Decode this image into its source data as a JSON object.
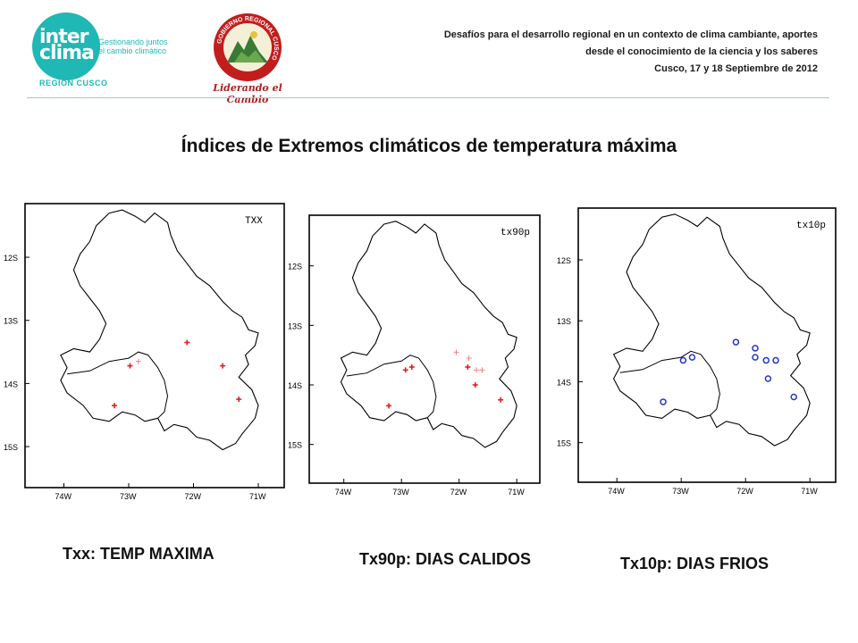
{
  "header": {
    "logo_word_1": "inter",
    "logo_word_2": "clima",
    "logo_tagline_1": "Gestionando juntos",
    "logo_tagline_2": "el cambio climático",
    "region": "REGION CUSCO",
    "gob_slogan": "Liderando el Cambio",
    "gob_ring_text": "GOBIERNO REGIONAL CUSCO",
    "event_line_1": "Desafíos para el desarrollo regional en un contexto de clima cambiante, aportes",
    "event_line_2": "desde el conocimiento de la ciencia y los saberes",
    "event_line_3": "Cusco, 17 y 18 Septiembre de 2012"
  },
  "title": "Índices de Extremos climáticos de temperatura máxima",
  "colors": {
    "accent": "#1fb8b4",
    "plus_marker": "#e02020",
    "circle_marker": "#2038c8",
    "slogan": "#b02020"
  },
  "axis": {
    "lat_ticks": [
      "12S",
      "13S",
      "14S",
      "15S"
    ],
    "lon_ticks": [
      "74W",
      "73W",
      "72W",
      "71W"
    ]
  },
  "panels": [
    {
      "label": "TXX",
      "caption": "Txx: TEMP MAXIMA",
      "marker": "plus",
      "points": [
        {
          "lon": -72.1,
          "lat": -13.35,
          "strong": true
        },
        {
          "lon": -72.98,
          "lat": -13.72,
          "strong": true
        },
        {
          "lon": -72.85,
          "lat": -13.65,
          "strong": false
        },
        {
          "lon": -71.55,
          "lat": -13.72,
          "strong": true
        },
        {
          "lon": -73.22,
          "lat": -14.35,
          "strong": true
        },
        {
          "lon": -71.3,
          "lat": -14.25,
          "strong": true
        }
      ]
    },
    {
      "label": "tx90p",
      "caption": "Tx90p: DIAS CALIDOS",
      "marker": "plus",
      "points": [
        {
          "lon": -72.93,
          "lat": -13.75,
          "strong": true
        },
        {
          "lon": -72.82,
          "lat": -13.7,
          "strong": true
        },
        {
          "lon": -72.05,
          "lat": -13.45,
          "strong": false
        },
        {
          "lon": -71.83,
          "lat": -13.55,
          "strong": false
        },
        {
          "lon": -71.85,
          "lat": -13.7,
          "strong": true
        },
        {
          "lon": -71.7,
          "lat": -13.75,
          "strong": false
        },
        {
          "lon": -71.6,
          "lat": -13.75,
          "strong": false
        },
        {
          "lon": -71.72,
          "lat": -14.0,
          "strong": true
        },
        {
          "lon": -73.22,
          "lat": -14.35,
          "strong": true
        },
        {
          "lon": -71.28,
          "lat": -14.25,
          "strong": true
        }
      ]
    },
    {
      "label": "tx10p",
      "caption": "Tx10p: DIAS FRIOS",
      "marker": "circle",
      "points": [
        {
          "lon": -72.15,
          "lat": -13.35,
          "strong": true
        },
        {
          "lon": -71.85,
          "lat": -13.45,
          "strong": true
        },
        {
          "lon": -71.85,
          "lat": -13.6,
          "strong": true
        },
        {
          "lon": -71.68,
          "lat": -13.65,
          "strong": true
        },
        {
          "lon": -71.53,
          "lat": -13.65,
          "strong": true
        },
        {
          "lon": -72.97,
          "lat": -13.65,
          "strong": true
        },
        {
          "lon": -72.83,
          "lat": -13.6,
          "strong": true
        },
        {
          "lon": -71.65,
          "lat": -13.95,
          "strong": true
        },
        {
          "lon": -73.28,
          "lat": -14.33,
          "strong": true
        },
        {
          "lon": -71.25,
          "lat": -14.25,
          "strong": true
        }
      ]
    }
  ]
}
